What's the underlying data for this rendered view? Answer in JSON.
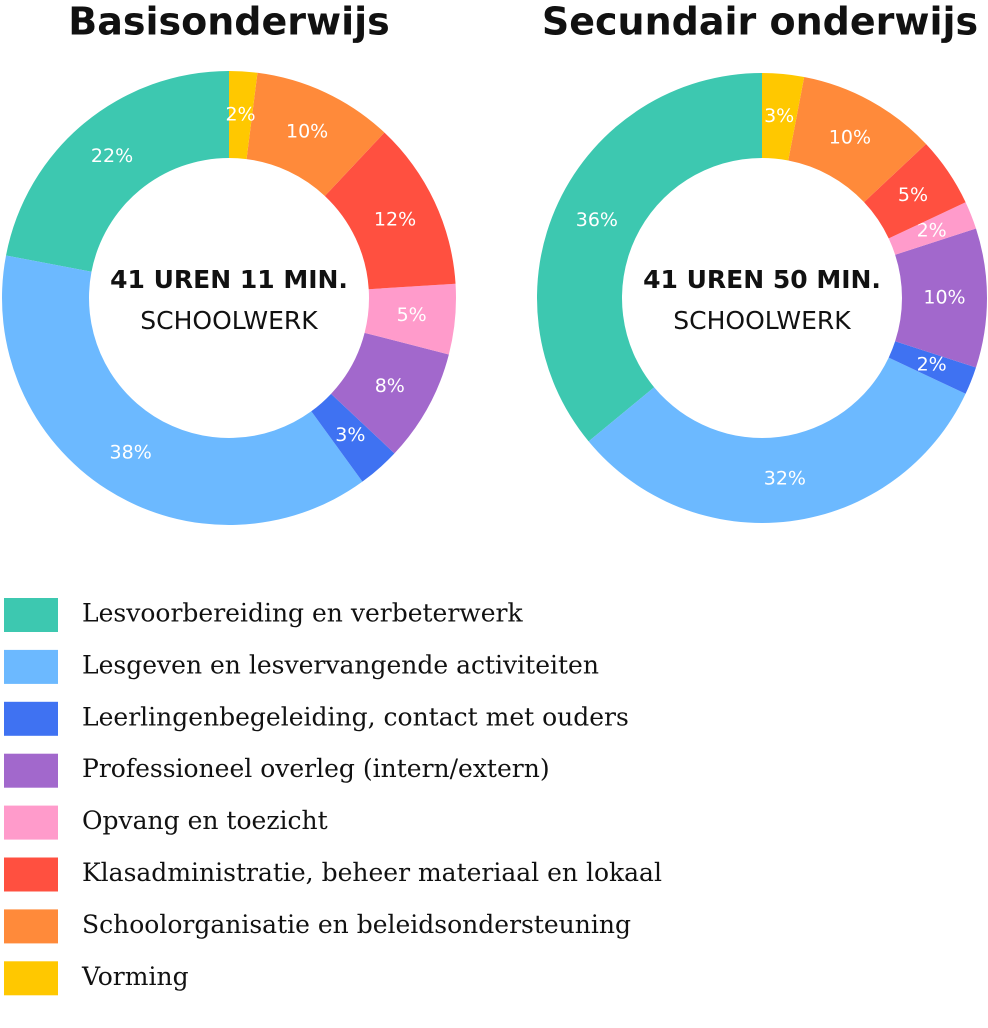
{
  "chart_data": [
    {
      "type": "donut",
      "title": "Basisonderwijs",
      "center_label": "41 UREN 11 MIN.",
      "center_sublabel": "SCHOOLWERK",
      "categories": [
        "Lesvoorbereiding en verbeterwerk",
        "Lesgeven en lesvervangende activiteiten",
        "Leerlingenbegeleiding, contact met ouders",
        "Professioneel overleg (intern/extern)",
        "Opvang en toezicht",
        "Klasadministratie, beheer materiaal en lokaal",
        "Schoolorganisatie en beleidsondersteuning",
        "Vorming"
      ],
      "values": [
        22,
        38,
        3,
        8,
        5,
        12,
        10,
        2
      ],
      "value_labels": [
        "22%",
        "38%",
        "3%",
        "8%",
        "5%",
        "12%",
        "10%",
        "2%"
      ],
      "colors": [
        "#3dc8b0",
        "#6cb9ff",
        "#3f72f2",
        "#a268cc",
        "#ff9bcb",
        "#ff5040",
        "#ff8a3a",
        "#ffc800"
      ]
    },
    {
      "type": "donut",
      "title": "Secundair onderwijs",
      "center_label": "41 UREN 50 MIN.",
      "center_sublabel": "SCHOOLWERK",
      "categories": [
        "Lesvoorbereiding en verbeterwerk",
        "Lesgeven en lesvervangende activiteiten",
        "Leerlingenbegeleiding, contact met ouders",
        "Professioneel overleg (intern/extern)",
        "Opvang en toezicht",
        "Klasadministratie, beheer materiaal en lokaal",
        "Schoolorganisatie en beleidsondersteuning",
        "Vorming"
      ],
      "values": [
        36,
        32,
        2,
        10,
        2,
        5,
        10,
        3
      ],
      "value_labels": [
        "36%",
        "32%",
        "2%",
        "10%",
        "2%",
        "5%",
        "10%",
        "3%"
      ],
      "colors": [
        "#3dc8b0",
        "#6cb9ff",
        "#3f72f2",
        "#a268cc",
        "#ff9bcb",
        "#ff5040",
        "#ff8a3a",
        "#ffc800"
      ]
    }
  ]
}
